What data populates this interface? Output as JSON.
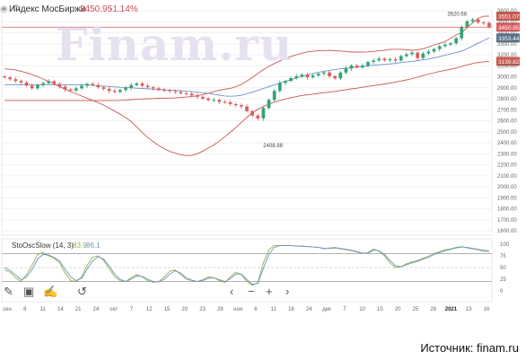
{
  "header": {
    "title": "Индекс МосБиржи",
    "price": "3450.95",
    "change": "-1.14%",
    "eye_icon": "eye-icon",
    "gear_icon": "gear-icon"
  },
  "watermark": "Finam.ru",
  "source": "Источник: finam.ru",
  "colors": {
    "up": "#33a374",
    "down": "#e05a5a",
    "band": "#c9574f",
    "ma": "#6d92c9",
    "stoch_k": "#93b347",
    "stoch_d": "#6d92c9",
    "current_line": "#e05a5a"
  },
  "indicator": {
    "label": "StoOscSlow (14, 3)",
    "k_value": "83.9",
    "d_value": "86.1"
  },
  "toolbar": [
    {
      "name": "pencil-icon",
      "glyph": "✎"
    },
    {
      "name": "calendar-icon",
      "glyph": "▣"
    },
    {
      "name": "edit-icon",
      "glyph": "✍"
    },
    {
      "name": "undo-icon",
      "glyph": "↺"
    },
    {
      "name": "back-arrow-icon",
      "glyph": "‹"
    },
    {
      "name": "zoom-out-icon",
      "glyph": "−"
    },
    {
      "name": "zoom-in-icon",
      "glyph": "+"
    },
    {
      "name": "forward-arrow-icon",
      "glyph": "›"
    }
  ],
  "chart_data": [
    {
      "type": "candlestick",
      "title": "Индекс МосБиржи",
      "ylim": [
        1560,
        3600
      ],
      "yticks": [
        1600,
        1700,
        1800,
        1900,
        2000,
        2100,
        2200,
        2300,
        2400,
        2500,
        2600,
        2700,
        2800,
        2900,
        3000,
        3100,
        3200,
        3300,
        3400,
        3500,
        3600
      ],
      "price_tags": [
        {
          "value": "3551.07",
          "price": 3551,
          "color": "#c9574f"
        },
        {
          "value": "3450.95",
          "price": 3451,
          "color": "#e05a5a"
        },
        {
          "value": "3353.44",
          "price": 3353,
          "color": "#5a6f8c"
        },
        {
          "value": "3139.82",
          "price": 3140,
          "color": "#c9574f"
        }
      ],
      "annotations": [
        {
          "text": "3520.66",
          "price": 3521
        },
        {
          "text": "2408.98",
          "price": 2409
        }
      ],
      "closes": [
        2995,
        2978,
        2962,
        2948,
        2920,
        2895,
        2925,
        2942,
        2960,
        2935,
        2910,
        2885,
        2875,
        2895,
        2918,
        2936,
        2925,
        2905,
        2890,
        2872,
        2862,
        2880,
        2900,
        2925,
        2940,
        2918,
        2905,
        2895,
        2880,
        2878,
        2870,
        2862,
        2850,
        2846,
        2830,
        2818,
        2802,
        2788,
        2790,
        2772,
        2768,
        2752,
        2742,
        2730,
        2688,
        2648,
        2622,
        2716,
        2790,
        2872,
        2945,
        2962,
        2988,
        3005,
        3020,
        2995,
        3012,
        3028,
        3040,
        3005,
        2985,
        3038,
        3075,
        3102,
        3085,
        3102,
        3135,
        3148,
        3165,
        3150,
        3160,
        3148,
        3188,
        3205,
        3220,
        3170,
        3212,
        3230,
        3252,
        3278,
        3292,
        3305,
        3350,
        3450,
        3505,
        3520,
        3495,
        3490,
        3451
      ],
      "upper_band": [
        2785,
        2785,
        2785,
        2785,
        2785,
        2785,
        2785,
        2785,
        2785,
        2785,
        2785,
        2785,
        2785,
        2785,
        2785,
        2785,
        2785,
        2785,
        2785,
        2785,
        2785,
        2786,
        2789,
        2792,
        2795,
        2798,
        2800,
        2802,
        2804,
        2805,
        2806,
        2808,
        2812,
        2816,
        2820,
        2828,
        2838,
        2850,
        2865,
        2878,
        2888,
        2895,
        2910,
        2932,
        2960,
        2995,
        3030,
        3065,
        3095,
        3120,
        3145,
        3165,
        3185,
        3200,
        3214,
        3226,
        3232,
        3238,
        3238,
        3240,
        3238,
        3234,
        3230,
        3225,
        3225,
        3225,
        3226,
        3230,
        3235,
        3240,
        3248,
        3250,
        3250,
        3245,
        3242,
        3245,
        3255,
        3270,
        3290,
        3305,
        3320,
        3350,
        3380,
        3400,
        3450,
        3490,
        3530,
        3550,
        3551
      ],
      "ma": [
        2928,
        2928,
        2928,
        2928,
        2928,
        2928,
        2928,
        2928,
        2928,
        2928,
        2928,
        2928,
        2928,
        2928,
        2928,
        2926,
        2922,
        2919,
        2915,
        2912,
        2908,
        2905,
        2903,
        2900,
        2897,
        2894,
        2891,
        2888,
        2885,
        2882,
        2879,
        2876,
        2873,
        2869,
        2865,
        2860,
        2855,
        2850,
        2842,
        2833,
        2826,
        2823,
        2826,
        2833,
        2845,
        2860,
        2876,
        2893,
        2910,
        2926,
        2942,
        2958,
        2974,
        2990,
        3005,
        3018,
        3030,
        3040,
        3050,
        3058,
        3066,
        3072,
        3078,
        3083,
        3088,
        3094,
        3100,
        3105,
        3109,
        3113,
        3117,
        3122,
        3128,
        3134,
        3140,
        3147,
        3154,
        3162,
        3172,
        3183,
        3195,
        3208,
        3220,
        3234,
        3255,
        3280,
        3305,
        3330,
        3353
      ],
      "lower_band": [
        3072,
        3068,
        3062,
        3050,
        3036,
        3020,
        3000,
        2980,
        2958,
        2935,
        2910,
        2888,
        2866,
        2845,
        2825,
        2805,
        2785,
        2765,
        2742,
        2715,
        2688,
        2660,
        2630,
        2592,
        2545,
        2495,
        2448,
        2410,
        2375,
        2347,
        2322,
        2305,
        2292,
        2284,
        2286,
        2300,
        2325,
        2352,
        2380,
        2415,
        2455,
        2495,
        2538,
        2585,
        2630,
        2672,
        2705,
        2730,
        2752,
        2770,
        2785,
        2798,
        2810,
        2820,
        2830,
        2836,
        2842,
        2849,
        2855,
        2861,
        2867,
        2875,
        2883,
        2890,
        2897,
        2905,
        2912,
        2920,
        2928,
        2935,
        2942,
        2952,
        2962,
        2972,
        2984,
        2997,
        3012,
        3025,
        3037,
        3048,
        3058,
        3068,
        3080,
        3094,
        3108,
        3120,
        3130,
        3136,
        3140
      ]
    },
    {
      "type": "line",
      "title": "StoOscSlow (14, 3)",
      "ylim": [
        0,
        100
      ],
      "yticks": [
        0,
        25,
        50,
        75,
        100
      ],
      "levels": [
        20,
        50,
        80
      ],
      "x_labels": [
        "сен",
        "8",
        "11",
        "14",
        "21",
        "24",
        "окт",
        "7",
        "12",
        "15",
        "20",
        "23",
        "28",
        "ноя",
        "6",
        "11",
        "18",
        "24",
        "дек",
        "7",
        "10",
        "15",
        "20",
        "25",
        "28",
        "2021",
        "13",
        "16"
      ],
      "series": [
        {
          "name": "K",
          "values": [
            45,
            40,
            28,
            20,
            35,
            55,
            78,
            82,
            75,
            70,
            60,
            38,
            22,
            20,
            30,
            55,
            72,
            75,
            65,
            48,
            30,
            22,
            20,
            28,
            35,
            30,
            22,
            18,
            20,
            30,
            42,
            45,
            35,
            25,
            22,
            20,
            24,
            30,
            28,
            22,
            18,
            30,
            40,
            35,
            20,
            12,
            18,
            60,
            88,
            97,
            97,
            97,
            97,
            96,
            95,
            95,
            94,
            93,
            90,
            92,
            93,
            90,
            88,
            86,
            83,
            80,
            82,
            90,
            85,
            75,
            60,
            50,
            52,
            58,
            62,
            65,
            70,
            74,
            80,
            84,
            88,
            90,
            93,
            95,
            92,
            90,
            88,
            85,
            84
          ]
        },
        {
          "name": "D",
          "values": [
            50,
            44,
            34,
            24,
            30,
            46,
            68,
            78,
            77,
            72,
            64,
            46,
            30,
            22,
            27,
            47,
            64,
            73,
            68,
            53,
            36,
            25,
            20,
            25,
            32,
            31,
            25,
            20,
            19,
            25,
            36,
            43,
            38,
            28,
            23,
            20,
            22,
            27,
            28,
            24,
            20,
            26,
            36,
            36,
            24,
            14,
            16,
            48,
            78,
            93,
            97,
            97,
            97,
            96,
            96,
            95,
            94,
            93,
            91,
            91,
            92,
            91,
            89,
            87,
            84,
            81,
            81,
            87,
            86,
            78,
            65,
            54,
            52,
            56,
            60,
            63,
            68,
            72,
            78,
            82,
            86,
            89,
            92,
            94,
            93,
            91,
            89,
            87,
            86
          ]
        }
      ]
    }
  ]
}
